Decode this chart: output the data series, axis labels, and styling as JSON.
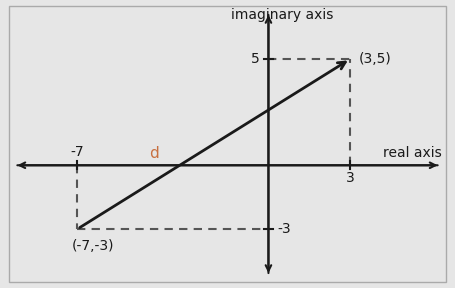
{
  "bg_color": "#e6e6e6",
  "plot_bg_color": "#e6e6e6",
  "axis_color": "#1a1a1a",
  "line_color": "#1a1a1a",
  "dashed_color": "#555555",
  "d_label_color": "#c87040",
  "point1": [
    -7,
    -3
  ],
  "point2": [
    3,
    5
  ],
  "xlim": [
    -9.5,
    6.5
  ],
  "ylim": [
    -5.5,
    7.5
  ],
  "label_imaginary": "imaginary axis",
  "label_real": "real axis",
  "label_d": "d",
  "label_point1": "(-7,-3)",
  "label_point2": "(3,5)",
  "label_5": "5",
  "label_neg3": "-3",
  "label_neg7": "-7",
  "label_3": "3",
  "fontsize_axis_label": 10,
  "fontsize_tick_label": 10,
  "fontsize_d": 11,
  "border_color": "#aaaaaa",
  "border_lw": 1.0
}
